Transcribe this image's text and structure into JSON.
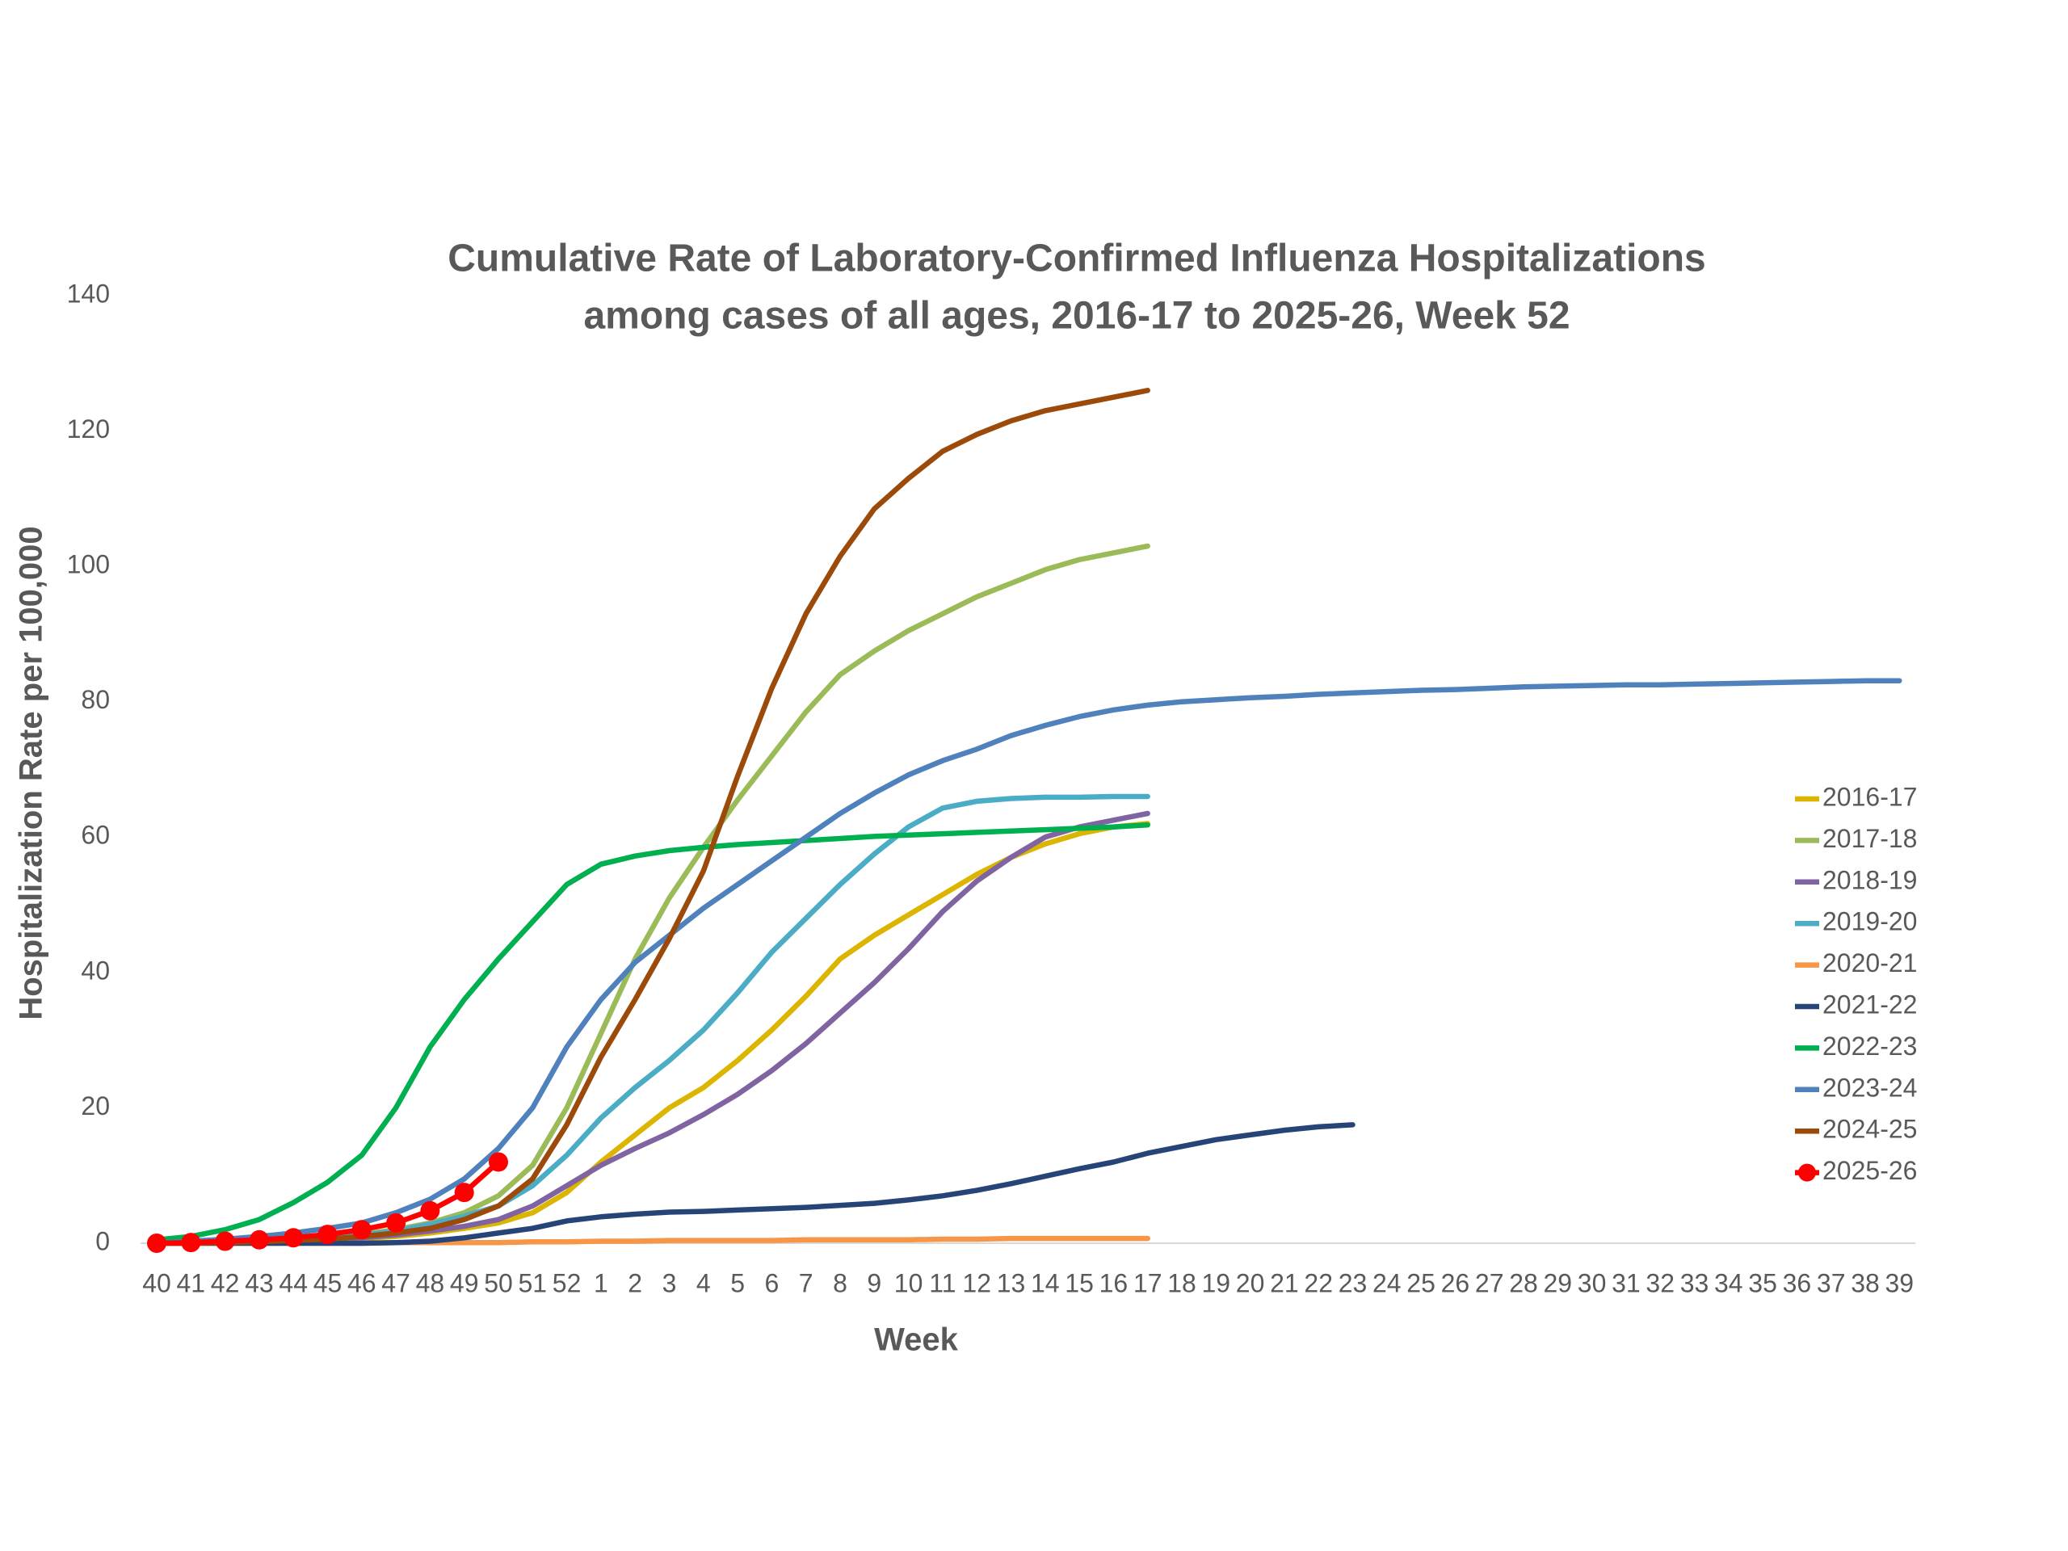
{
  "chart_data": {
    "type": "line",
    "title": "Cumulative Rate of Laboratory-Confirmed Influenza Hospitalizations",
    "subtitle": "among cases of all ages, 2016-17 to 2025-26, Week 52",
    "x_label": "Week",
    "y_label": "Hospitalization Rate per 100,000",
    "categories": [
      "40",
      "41",
      "42",
      "43",
      "44",
      "45",
      "46",
      "47",
      "48",
      "49",
      "50",
      "51",
      "52",
      "1",
      "2",
      "3",
      "4",
      "5",
      "6",
      "7",
      "8",
      "9",
      "10",
      "11",
      "12",
      "13",
      "14",
      "15",
      "16",
      "17",
      "18",
      "19",
      "20",
      "21",
      "22",
      "23",
      "24",
      "25",
      "26",
      "27",
      "28",
      "29",
      "30",
      "31",
      "32",
      "33",
      "34",
      "35",
      "36",
      "37",
      "38",
      "39"
    ],
    "ylim": [
      0,
      140
    ],
    "yticks": [
      0,
      20,
      40,
      60,
      80,
      100,
      120,
      140
    ],
    "grid": false,
    "legend": "right",
    "series": [
      {
        "name": "2016-17",
        "color": "#dcb500",
        "values": [
          0,
          0,
          0.1,
          0.2,
          0.3,
          0.5,
          0.7,
          1,
          1.5,
          2.2,
          3,
          4.5,
          7.5,
          12,
          16,
          20,
          23,
          27,
          31.5,
          36.5,
          42,
          45.5,
          48.5,
          51.5,
          54.5,
          57,
          59,
          60.5,
          61.5,
          62,
          null,
          null,
          null,
          null,
          null,
          null,
          null,
          null,
          null,
          null,
          null,
          null,
          null,
          null,
          null,
          null,
          null,
          null,
          null,
          null,
          null,
          null
        ]
      },
      {
        "name": "2017-18",
        "color": "#9bbb59",
        "values": [
          0,
          0.1,
          0.2,
          0.4,
          0.6,
          0.9,
          1.3,
          2,
          3,
          4.5,
          7,
          11.5,
          20,
          31,
          42,
          51,
          58.5,
          65.5,
          72,
          78.5,
          84,
          87.5,
          90.5,
          93,
          95.5,
          97.5,
          99.5,
          101,
          102,
          103,
          null,
          null,
          null,
          null,
          null,
          null,
          null,
          null,
          null,
          null,
          null,
          null,
          null,
          null,
          null,
          null,
          null,
          null,
          null,
          null,
          null,
          null
        ]
      },
      {
        "name": "2018-19",
        "color": "#8064a2",
        "values": [
          0,
          0,
          0.1,
          0.2,
          0.3,
          0.5,
          0.8,
          1.2,
          1.8,
          2.5,
          3.5,
          5.5,
          8.5,
          11.5,
          14,
          16.3,
          19,
          22,
          25.5,
          29.5,
          34,
          38.5,
          43.5,
          49,
          53.5,
          57,
          60,
          61.5,
          62.5,
          63.5,
          null,
          null,
          null,
          null,
          null,
          null,
          null,
          null,
          null,
          null,
          null,
          null,
          null,
          null,
          null,
          null,
          null,
          null,
          null,
          null,
          null,
          null
        ]
      },
      {
        "name": "2019-20",
        "color": "#4bacc6",
        "values": [
          0,
          0.1,
          0.2,
          0.3,
          0.5,
          0.8,
          1.2,
          1.8,
          2.8,
          4,
          5.5,
          8.5,
          13,
          18.5,
          23,
          27,
          31.5,
          37,
          43,
          48,
          53,
          57.5,
          61.5,
          64.3,
          65.3,
          65.7,
          65.9,
          65.9,
          66,
          66,
          null,
          null,
          null,
          null,
          null,
          null,
          null,
          null,
          null,
          null,
          null,
          null,
          null,
          null,
          null,
          null,
          null,
          null,
          null,
          null,
          null,
          null
        ]
      },
      {
        "name": "2020-21",
        "color": "#f79646",
        "values": [
          0,
          0,
          0,
          0,
          0,
          0,
          0,
          0.1,
          0.1,
          0.1,
          0.1,
          0.2,
          0.2,
          0.3,
          0.3,
          0.4,
          0.4,
          0.4,
          0.4,
          0.5,
          0.5,
          0.5,
          0.5,
          0.6,
          0.6,
          0.7,
          0.7,
          0.7,
          0.7,
          0.7,
          null,
          null,
          null,
          null,
          null,
          null,
          null,
          null,
          null,
          null,
          null,
          null,
          null,
          null,
          null,
          null,
          null,
          null,
          null,
          null,
          null,
          null
        ]
      },
      {
        "name": "2021-22",
        "color": "#264478",
        "values": [
          0,
          0,
          0,
          0,
          0,
          0,
          0,
          0.1,
          0.3,
          0.8,
          1.5,
          2.2,
          3.3,
          3.9,
          4.3,
          4.6,
          4.7,
          4.9,
          5.1,
          5.3,
          5.6,
          5.9,
          6.4,
          7,
          7.8,
          8.8,
          9.9,
          11,
          12,
          13.3,
          14.3,
          15.3,
          16,
          16.7,
          17.2,
          17.5,
          null,
          null,
          null,
          null,
          null,
          null,
          null,
          null,
          null,
          null,
          null,
          null,
          null,
          null,
          null,
          null
        ]
      },
      {
        "name": "2022-23",
        "color": "#00b050",
        "values": [
          0.5,
          1,
          2,
          3.5,
          6,
          9,
          13,
          20,
          29,
          36,
          42,
          47.5,
          53,
          56,
          57.2,
          58,
          58.5,
          58.9,
          59.2,
          59.5,
          59.8,
          60.1,
          60.3,
          60.5,
          60.7,
          60.9,
          61.1,
          61.3,
          61.5,
          61.8,
          null,
          null,
          null,
          null,
          null,
          null,
          null,
          null,
          null,
          null,
          null,
          null,
          null,
          null,
          null,
          null,
          null,
          null,
          null,
          null,
          null,
          null
        ]
      },
      {
        "name": "2023-24",
        "color": "#4f81bd",
        "values": [
          0,
          0.3,
          0.6,
          1,
          1.5,
          2.2,
          3,
          4.5,
          6.5,
          9.5,
          14,
          20,
          29,
          36,
          41.5,
          45.5,
          49.5,
          53,
          56.5,
          60,
          63.5,
          66.5,
          69.2,
          71.3,
          73,
          75,
          76.5,
          77.8,
          78.8,
          79.5,
          80,
          80.3,
          80.6,
          80.8,
          81.1,
          81.3,
          81.5,
          81.7,
          81.8,
          82,
          82.2,
          82.3,
          82.4,
          82.5,
          82.5,
          82.6,
          82.7,
          82.8,
          82.9,
          83,
          83.1,
          83.1
        ]
      },
      {
        "name": "2024-25",
        "color": "#9c4a0a",
        "values": [
          0,
          0,
          0.1,
          0.2,
          0.4,
          0.6,
          1,
          1.5,
          2.2,
          3.5,
          5.5,
          9.5,
          17.5,
          27.5,
          36,
          45,
          55,
          69,
          82,
          93,
          101.5,
          108.5,
          113,
          117,
          119.5,
          121.5,
          123,
          124,
          125,
          126,
          null,
          null,
          null,
          null,
          null,
          null,
          null,
          null,
          null,
          null,
          null,
          null,
          null,
          null,
          null,
          null,
          null,
          null,
          null,
          null,
          null,
          null
        ]
      },
      {
        "name": "2025-26",
        "color": "#ff0000",
        "marker": "circle",
        "values": [
          0,
          0.1,
          0.3,
          0.5,
          0.8,
          1.3,
          2,
          3,
          4.8,
          7.5,
          12,
          null,
          null,
          null,
          null,
          null,
          null,
          null,
          null,
          null,
          null,
          null,
          null,
          null,
          null,
          null,
          null,
          null,
          null,
          null,
          null,
          null,
          null,
          null,
          null,
          null,
          null,
          null,
          null,
          null,
          null,
          null,
          null,
          null,
          null,
          null,
          null,
          null,
          null,
          null,
          null,
          null
        ]
      }
    ]
  }
}
